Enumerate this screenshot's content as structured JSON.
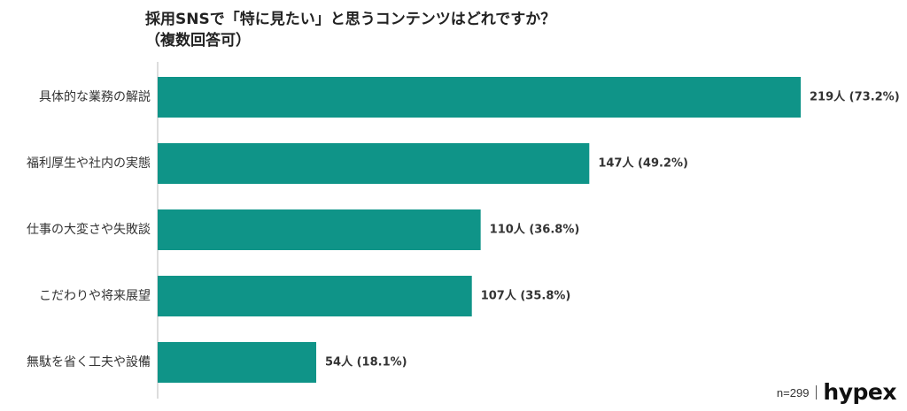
{
  "title_line1": "採用SNSで「特に見たい」と思うコンテンツはどれですか？",
  "title_line2": "（複数回答可）",
  "footer": {
    "sample_size": "n=299",
    "brand": "hypex"
  },
  "colors": {
    "bar": "#0f9488",
    "axis": "#bbbbbb"
  },
  "chart_data": {
    "type": "bar",
    "orientation": "horizontal",
    "title": "採用SNSで「特に見たい」と思うコンテンツはどれですか？（複数回答可）",
    "categories": [
      "具体的な業務の解説",
      "福利厚生や社内の実態",
      "仕事の大変さや失敗談",
      "こだわりや将来展望",
      "無駄を省く工夫や設備"
    ],
    "values": [
      219,
      147,
      110,
      107,
      54
    ],
    "percentages": [
      73.2,
      49.2,
      36.8,
      35.8,
      18.1
    ],
    "data_labels": [
      "219人 (73.2%)",
      "147人 (49.2%)",
      "110人 (36.8%)",
      "107人 (35.8%)",
      "54人 (18.1%)"
    ],
    "xlim": [
      0,
      219
    ],
    "grid": false,
    "legend": "none"
  }
}
